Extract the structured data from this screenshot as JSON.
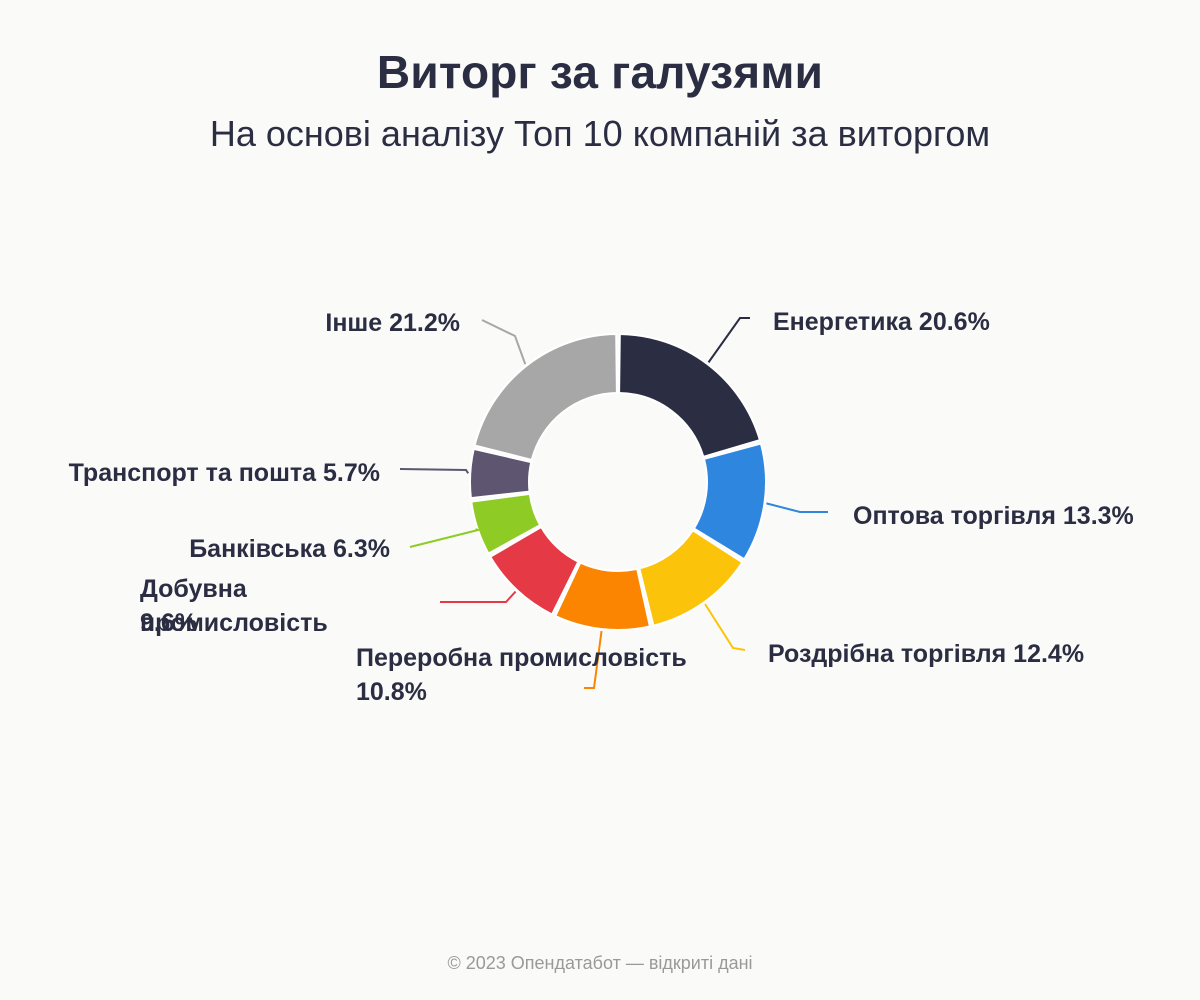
{
  "title": "Виторг за галузями",
  "subtitle": "На основі аналізу Топ 10 компаній за виторгом",
  "footer": "© 2023 Опендатабот — відкриті дані",
  "chart_data": {
    "type": "pie",
    "variant": "donut",
    "title": "Виторг за галузями",
    "subtitle": "На основі аналізу Топ 10 компаній за виторгом",
    "unit": "%",
    "slices": [
      {
        "label": "Енергетика",
        "value": 20.6,
        "text": "Енергетика 20.6%",
        "color": "#2b2d42"
      },
      {
        "label": "Оптова торгівля",
        "value": 13.3,
        "text": "Оптова торгівля 13.3%",
        "color": "#2e86de"
      },
      {
        "label": "Роздрібна торгівля",
        "value": 12.4,
        "text": "Роздрібна торгівля 12.4%",
        "color": "#fcc30b"
      },
      {
        "label": "Переробна промисловість",
        "value": 10.8,
        "text": "Переробна промисловість 10.8%",
        "color": "#fb8500"
      },
      {
        "label": "Добувна промисловість",
        "value": 9.6,
        "text": "Добувна промисловість 9.6%",
        "color": "#e63946"
      },
      {
        "label": "Банківська",
        "value": 6.3,
        "text": "Банківська 6.3%",
        "color": "#8ecb25"
      },
      {
        "label": "Транспорт та пошта",
        "value": 5.7,
        "text": "Транспорт та пошта 5.7%",
        "color": "#5e5570"
      },
      {
        "label": "Інше",
        "value": 21.2,
        "text": "Інше 21.2%",
        "color": "#a7a7a7"
      }
    ]
  }
}
